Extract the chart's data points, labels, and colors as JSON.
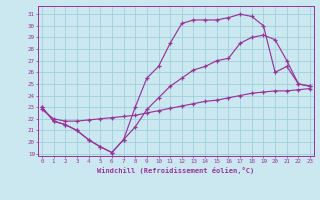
{
  "xlabel": "Windchill (Refroidissement éolien,°C)",
  "background_color": "#cbe8f0",
  "line_color": "#993399",
  "grid_color": "#9ecfdb",
  "xlim": [
    -0.3,
    23.3
  ],
  "ylim": [
    18.8,
    31.7
  ],
  "xticks": [
    0,
    1,
    2,
    3,
    4,
    5,
    6,
    7,
    8,
    9,
    10,
    11,
    12,
    13,
    14,
    15,
    16,
    17,
    18,
    19,
    20,
    21,
    22,
    23
  ],
  "yticks": [
    19,
    20,
    21,
    22,
    23,
    24,
    25,
    26,
    27,
    28,
    29,
    30,
    31
  ],
  "line1_x": [
    0,
    1,
    2,
    3,
    4,
    5,
    6,
    7,
    8,
    9,
    10,
    11,
    12,
    13,
    14,
    15,
    16,
    17,
    18,
    19,
    20,
    21,
    22,
    23
  ],
  "line1_y": [
    23.0,
    21.8,
    21.5,
    21.0,
    20.2,
    19.6,
    19.1,
    20.2,
    23.0,
    25.5,
    26.5,
    28.5,
    30.2,
    30.5,
    30.5,
    30.5,
    30.7,
    31.0,
    30.8,
    30.0,
    26.0,
    26.5,
    25.0,
    24.8
  ],
  "line2_x": [
    0,
    1,
    2,
    3,
    4,
    5,
    6,
    7,
    8,
    9,
    10,
    11,
    12,
    13,
    14,
    15,
    16,
    17,
    18,
    19,
    20,
    21,
    22,
    23
  ],
  "line2_y": [
    23.0,
    21.8,
    21.5,
    21.0,
    20.2,
    19.6,
    19.1,
    20.2,
    21.3,
    22.8,
    23.8,
    24.8,
    25.5,
    26.2,
    26.5,
    27.0,
    27.2,
    28.5,
    29.0,
    29.2,
    28.8,
    27.0,
    25.0,
    24.8
  ],
  "line3_x": [
    0,
    1,
    2,
    3,
    4,
    5,
    6,
    7,
    8,
    9,
    10,
    11,
    12,
    13,
    14,
    15,
    16,
    17,
    18,
    19,
    20,
    21,
    22,
    23
  ],
  "line3_y": [
    22.8,
    22.0,
    21.8,
    21.8,
    21.9,
    22.0,
    22.1,
    22.2,
    22.3,
    22.5,
    22.7,
    22.9,
    23.1,
    23.3,
    23.5,
    23.6,
    23.8,
    24.0,
    24.2,
    24.3,
    24.4,
    24.4,
    24.5,
    24.6
  ]
}
